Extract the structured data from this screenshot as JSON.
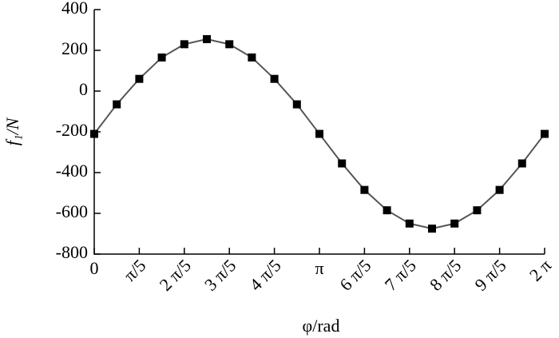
{
  "chart_data": {
    "type": "line",
    "x_label": "φ/rad",
    "y_label": "f₁/N",
    "x": [
      0,
      0.3142,
      0.6283,
      0.9425,
      1.2566,
      1.5708,
      1.885,
      2.1991,
      2.5133,
      2.8274,
      3.1416,
      3.4558,
      3.7699,
      4.0841,
      4.3982,
      4.7124,
      5.0265,
      5.3407,
      5.6549,
      5.969,
      6.2832
    ],
    "series": [
      {
        "color": "#555555",
        "marker_color": "#000000",
        "values": [
          -210,
          -65,
          60,
          165,
          230,
          255,
          230,
          165,
          60,
          -65,
          -210,
          -355,
          -485,
          -585,
          -650,
          -675,
          -650,
          -585,
          -485,
          -355,
          -210
        ]
      }
    ],
    "xlim": [
      0,
      6.2832
    ],
    "xticks": [
      0,
      {
        "value": 0.6283,
        "label": "π/5"
      },
      {
        "value": 1.2566,
        "label": "2 π/5"
      },
      {
        "value": 1.885,
        "label": "3 π/5"
      },
      {
        "value": 2.5133,
        "label": "4 π/5"
      },
      {
        "value": 3.1416,
        "label": "π"
      },
      {
        "value": 3.7699,
        "label": "6 π/5"
      },
      {
        "value": 4.3982,
        "label": "7 π/5"
      },
      {
        "value": 5.0265,
        "label": "8 π/5"
      },
      {
        "value": 5.6549,
        "label": "9 π/5"
      },
      {
        "value": 6.2832,
        "label": "2 π"
      }
    ],
    "ylim": [
      -800,
      400
    ],
    "yticks": [
      -800,
      -600,
      -400,
      -200,
      0,
      200,
      400
    ]
  }
}
